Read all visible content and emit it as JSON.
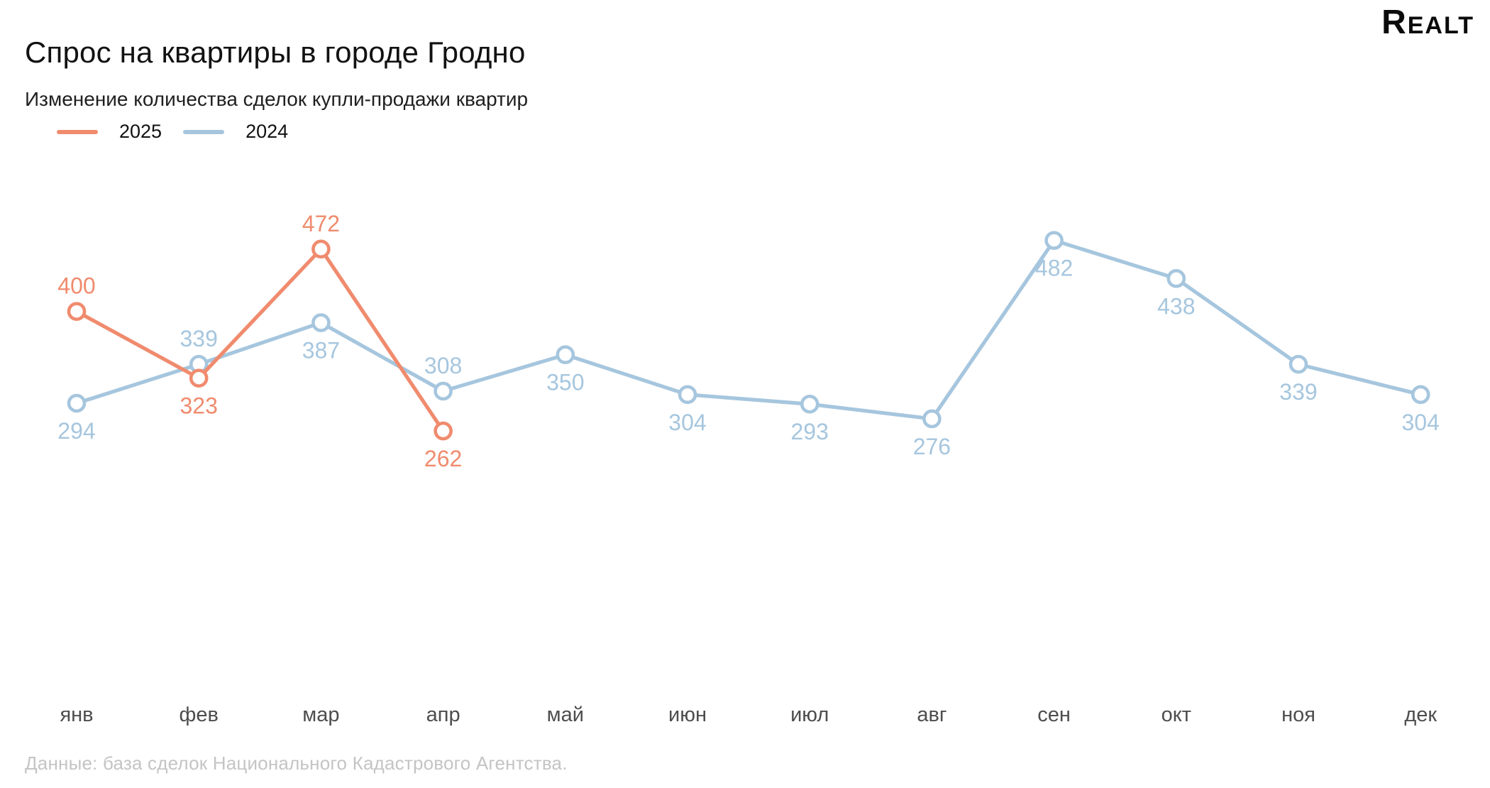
{
  "header": {
    "title": "Спрос на квартиры в городе Гродно",
    "subtitle": "Изменение количества сделок купли-продажи квартир",
    "logo_text": "Realt"
  },
  "legend": {
    "items": [
      {
        "label": "2025",
        "color": "#F08B6E"
      },
      {
        "label": "2024",
        "color": "#A6C6DE"
      }
    ]
  },
  "chart_data": {
    "type": "line",
    "title": "Спрос на квартиры в городе Гродно",
    "subtitle": "Изменение количества сделок купли-продажи квартир",
    "categories": [
      "янв",
      "фев",
      "мар",
      "апр",
      "май",
      "июн",
      "июл",
      "авг",
      "сен",
      "окт",
      "ноя",
      "дек"
    ],
    "series": [
      {
        "name": "2025",
        "color": "#F08B6E",
        "values": [
          400,
          323,
          472,
          262
        ],
        "label_positions": [
          "above",
          "below",
          "above",
          "below"
        ]
      },
      {
        "name": "2024",
        "color": "#A6C6DE",
        "values": [
          294,
          339,
          387,
          308,
          350,
          304,
          293,
          276,
          482,
          438,
          339,
          304
        ],
        "label_positions": [
          "below",
          "above",
          "below",
          "above",
          "below",
          "below",
          "below",
          "below",
          "below",
          "below",
          "below",
          "below"
        ]
      }
    ],
    "ylim": [
      230,
      520
    ],
    "xlabel": "",
    "ylabel": "",
    "grid": false,
    "legend_position": "top-left",
    "point_style": "open-circle",
    "data_labels": true,
    "axis_text_color": "#4d4d4d"
  },
  "footer": {
    "source": "Данные: база сделок Национального Кадастрового Агентства."
  }
}
